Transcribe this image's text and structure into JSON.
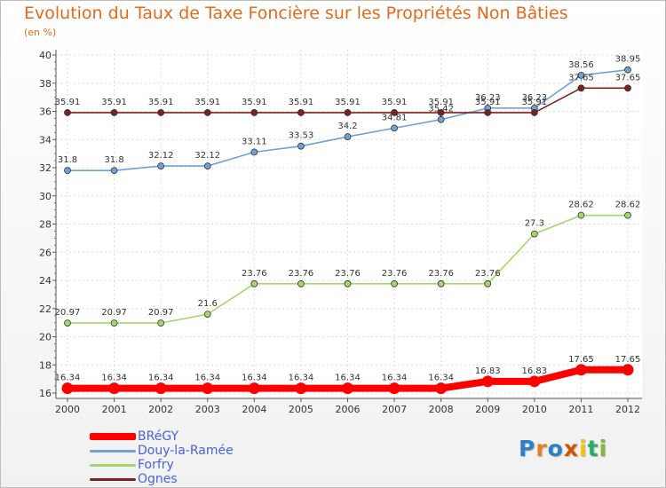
{
  "chart_data": {
    "type": "line",
    "title": "Evolution du Taux de Taxe Foncière sur les Propriétés Non Bâties",
    "unit_label": "(en %)",
    "x": [
      "2000",
      "2001",
      "2002",
      "2003",
      "2004",
      "2005",
      "2006",
      "2007",
      "2008",
      "2009",
      "2010",
      "2011",
      "2012"
    ],
    "ylim": [
      16,
      40
    ],
    "yticks": [
      16,
      18,
      20,
      22,
      24,
      26,
      28,
      30,
      32,
      34,
      36,
      38,
      40
    ],
    "grid": true,
    "legend_position": "bottom-left",
    "series": [
      {
        "name": "BRéGY",
        "color": "#ff0000",
        "values": [
          16.34,
          16.34,
          16.34,
          16.34,
          16.34,
          16.34,
          16.34,
          16.34,
          16.34,
          16.83,
          16.83,
          17.65,
          17.65
        ],
        "labels": [
          "16.34",
          "16.34",
          "16.34",
          "16.34",
          "16.34",
          "16.34",
          "16.34",
          "16.34",
          "16.34",
          "16.83",
          "16.83",
          "17.65",
          "17.65"
        ]
      },
      {
        "name": "Douy-la-Ramée",
        "color": "#6fa0d8",
        "values": [
          31.8,
          31.8,
          32.12,
          32.12,
          33.11,
          33.53,
          34.2,
          34.81,
          35.42,
          36.23,
          36.23,
          38.56,
          38.95
        ],
        "labels": [
          "31.8",
          "31.8",
          "32.12",
          "32.12",
          "33.11",
          "33.53",
          "34.2",
          "34.81",
          "35.42",
          "36.23",
          "36.23",
          "38.56",
          "38.95"
        ]
      },
      {
        "name": "Forfry",
        "color": "#a4d66b",
        "values": [
          20.97,
          20.97,
          20.97,
          21.6,
          23.76,
          23.76,
          23.76,
          23.76,
          23.76,
          23.76,
          27.3,
          28.62,
          28.62
        ],
        "labels": [
          "20.97",
          "20.97",
          "20.97",
          "21.6",
          "23.76",
          "23.76",
          "23.76",
          "23.76",
          "23.76",
          "23.76",
          "27.3",
          "28.62",
          "28.62"
        ]
      },
      {
        "name": "Ognes",
        "color": "#7a2222",
        "values": [
          35.91,
          35.91,
          35.91,
          35.91,
          35.91,
          35.91,
          35.91,
          35.91,
          35.91,
          35.91,
          35.91,
          37.65,
          37.65
        ],
        "labels": [
          "35.91",
          "35.91",
          "35.91",
          "35.91",
          "35.91",
          "35.91",
          "35.91",
          "35.91",
          "35.91",
          "35.91",
          "35.91",
          "37.65",
          "37.65"
        ]
      }
    ]
  },
  "logo": {
    "text": "Proxiti",
    "letters": [
      "P",
      "r",
      "o",
      "x",
      "i",
      "t",
      "i"
    ]
  }
}
